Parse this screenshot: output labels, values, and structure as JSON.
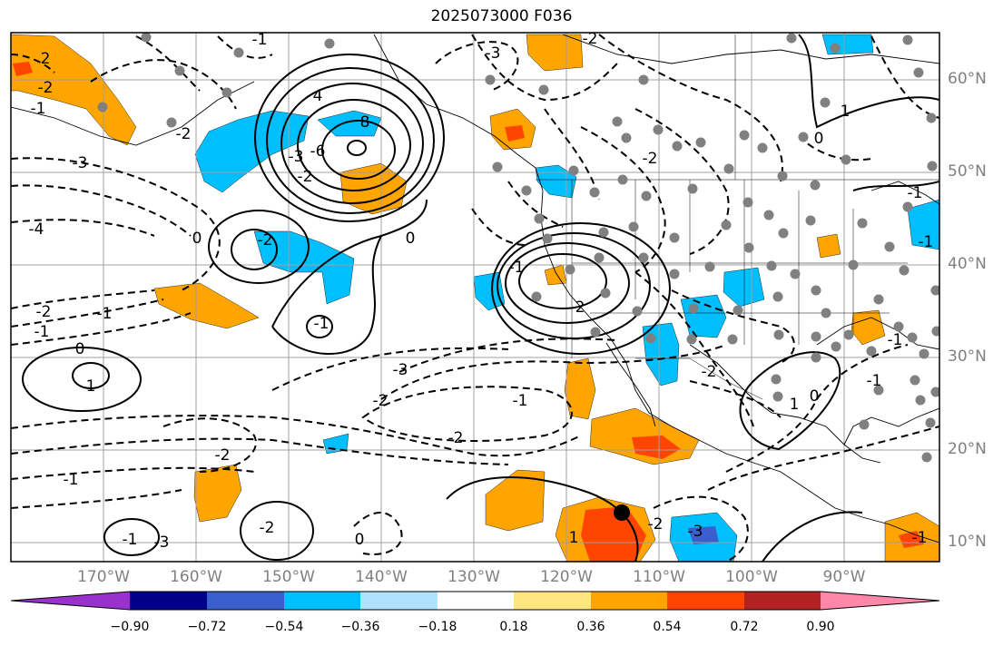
{
  "title": "2025073000 F036",
  "map": {
    "lat_labels": [
      "60°N",
      "50°N",
      "40°N",
      "30°N",
      "20°N",
      "10°N"
    ],
    "lon_labels": [
      "170°W",
      "160°W",
      "150°W",
      "140°W",
      "130°W",
      "120°W",
      "110°W",
      "100°W",
      "90°W"
    ],
    "contour_labels": [
      "2",
      "-2",
      "-1",
      "-3",
      "-4",
      "-2",
      "-1",
      "-1",
      "0",
      "1",
      "-2",
      "-1",
      "-2",
      "4",
      "8",
      "-6",
      "-3",
      "-2",
      "0",
      "-2",
      "-3",
      "-2",
      "0",
      "-2",
      "-1",
      "-2",
      "-3",
      "-2",
      "-1",
      "-2",
      "-2",
      "1",
      "0",
      "1",
      "-1",
      "-3",
      "-2",
      "0",
      "-2",
      "-3",
      "-1",
      "-1",
      "-1",
      "0",
      "1",
      "-1",
      "-1",
      "-1",
      "-1"
    ]
  },
  "colorbar": {
    "ticks": [
      "−0.90",
      "−0.72",
      "−0.54",
      "−0.36",
      "−0.18",
      "0.18",
      "0.36",
      "0.54",
      "0.72",
      "0.90"
    ],
    "colors": [
      "#9932cc",
      "#00008b",
      "#3a5fcd",
      "#00bfff",
      "#b0e2ff",
      "#ffffff",
      "#ffe680",
      "#ffa500",
      "#ff4500",
      "#b22222",
      "#ff88aa"
    ]
  },
  "colors": {
    "frame": "#000000",
    "grid": "#a0a0a0",
    "label": "#808080",
    "station": "#808080"
  }
}
